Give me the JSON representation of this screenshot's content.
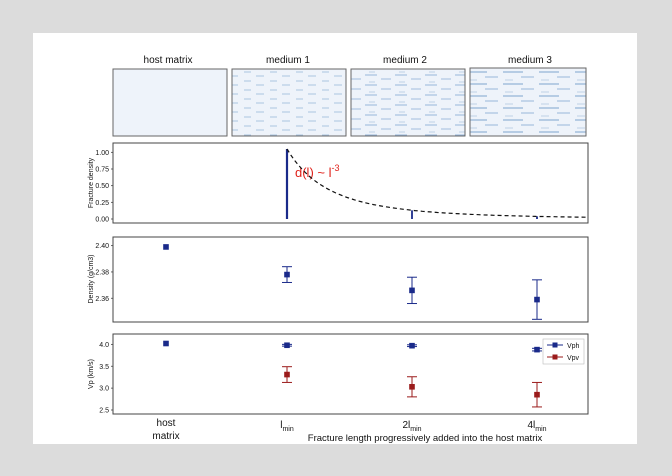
{
  "media_header": {
    "labels": [
      "host matrix",
      "medium 1",
      "medium 2",
      "medium 3"
    ],
    "color": "#eef3fa",
    "crack_color": "#7ea5cf"
  },
  "chart_data": [
    {
      "type": "line",
      "ylabel": "Fracture density",
      "ylim": [
        0,
        1.05
      ],
      "yticks": [
        "0.00",
        "0.25",
        "0.50",
        "0.75",
        "1.00"
      ],
      "annotation": {
        "text": "d(l) ~ l",
        "superscript": "-3",
        "color": "#e0211a"
      },
      "bars": [
        {
          "x": 1,
          "value": 1.05
        },
        {
          "x": 2,
          "value": 0.13
        },
        {
          "x": 3,
          "value": 0.04
        }
      ],
      "curve": {
        "style": "dashed",
        "function": "d(l) ~ l^-3"
      },
      "bar_color": "#1a2a8a"
    },
    {
      "type": "scatter",
      "ylabel": "Density (g/cm3)",
      "ylim": [
        2.345,
        2.402
      ],
      "yticks": [
        "2.36",
        "2.38",
        "2.40"
      ],
      "categories": [
        "host matrix",
        "lmin",
        "2lmin",
        "4lmin"
      ],
      "series": [
        {
          "values": [
            2.399,
            2.378,
            2.366,
            2.359
          ],
          "errors": [
            0,
            0.006,
            0.01,
            0.015
          ],
          "color": "#1a2a8a"
        }
      ]
    },
    {
      "type": "scatter",
      "ylabel": "Vp (km/s)",
      "ylim": [
        2.5,
        4.1
      ],
      "yticks": [
        "2.5",
        "3.0",
        "3.5",
        "4.0"
      ],
      "categories": [
        "host matrix",
        "lmin",
        "2lmin",
        "4lmin"
      ],
      "legend": "right",
      "series": [
        {
          "name": "Vph",
          "values": [
            4.02,
            3.98,
            3.97,
            3.88
          ],
          "errors": [
            0,
            0.02,
            0.02,
            0.03
          ],
          "color": "#1a2a8a"
        },
        {
          "name": "Vpv",
          "values": [
            null,
            3.31,
            3.03,
            2.85
          ],
          "errors": [
            0,
            0.18,
            0.23,
            0.28
          ],
          "color": "#9b1b1b"
        }
      ]
    }
  ],
  "x_axis": {
    "tick_labels": [
      {
        "main": "host",
        "second": "matrix"
      },
      {
        "main": "l",
        "sub": "min"
      },
      {
        "main": "2l",
        "sub": "min"
      },
      {
        "main": "4l",
        "sub": "min"
      }
    ],
    "xlabel": "Fracture length progressively added into the host matrix"
  }
}
